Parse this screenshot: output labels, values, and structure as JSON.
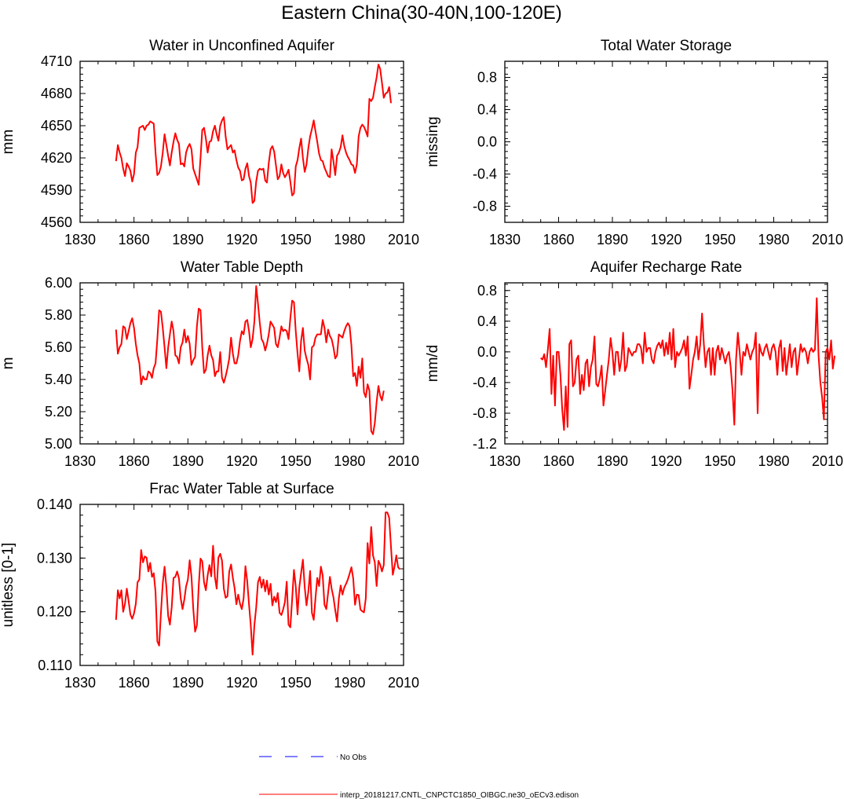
{
  "figure": {
    "title": "Eastern China(30-40N,100-120E)"
  },
  "chart_data": [
    {
      "type": "line",
      "title": "Water in Unconfined Aquifer",
      "ylabel": "mm",
      "xlim": [
        1830,
        2010
      ],
      "ylim": [
        4560,
        4710
      ],
      "xticks": [
        "1830",
        "1860",
        "1890",
        "1920",
        "1950",
        "1980",
        "2010"
      ],
      "yticks": [
        "4560",
        "4590",
        "4620",
        "4650",
        "4680",
        "4710"
      ],
      "start_year": 1850,
      "series": [
        {
          "name": "interp_20181217.CNTL_CNPCTC1850_OIBGC.ne30_oECv3.edison",
          "color": "#ff0000",
          "values": [
            4617,
            4632,
            4625,
            4620,
            4610,
            4603,
            4615,
            4612,
            4608,
            4598,
            4605,
            4625,
            4630,
            4648,
            4649,
            4650,
            4646,
            4650,
            4651,
            4654,
            4653,
            4652,
            4625,
            4604,
            4606,
            4612,
            4625,
            4642,
            4632,
            4622,
            4613,
            4625,
            4635,
            4643,
            4637,
            4633,
            4614,
            4615,
            4612,
            4625,
            4630,
            4633,
            4628,
            4610,
            4605,
            4600,
            4595,
            4620,
            4646,
            4648,
            4638,
            4625,
            4635,
            4636,
            4645,
            4650,
            4642,
            4636,
            4650,
            4655,
            4658,
            4640,
            4628,
            4630,
            4632,
            4625,
            4627,
            4618,
            4611,
            4608,
            4599,
            4600,
            4610,
            4615,
            4603,
            4597,
            4578,
            4580,
            4598,
            4608,
            4610,
            4609,
            4610,
            4599,
            4597,
            4615,
            4628,
            4631,
            4626,
            4613,
            4600,
            4603,
            4614,
            4606,
            4602,
            4605,
            4609,
            4598,
            4585,
            4587,
            4612,
            4618,
            4629,
            4638,
            4620,
            4607,
            4614,
            4629,
            4640,
            4647,
            4655,
            4645,
            4635,
            4624,
            4618,
            4617,
            4611,
            4607,
            4603,
            4602,
            4628,
            4617,
            4604,
            4622,
            4625,
            4630,
            4641,
            4631,
            4625,
            4621,
            4618,
            4614,
            4613,
            4606,
            4614,
            4640,
            4648,
            4651,
            4649,
            4645,
            4640,
            4675,
            4673,
            4676,
            4686,
            4695,
            4707,
            4703,
            4690,
            4676,
            4680,
            4681,
            4686,
            4671
          ]
        }
      ]
    },
    {
      "type": "line",
      "title": "Total Water Storage",
      "ylabel": "missing",
      "xlim": [
        1830,
        2010
      ],
      "ylim": [
        -1,
        1
      ],
      "xticks": [
        "1830",
        "1860",
        "1890",
        "1920",
        "1950",
        "1980",
        "2010"
      ],
      "yticks": [
        "-0.8",
        "-0.4",
        "0.0",
        "0.4",
        "0.8"
      ],
      "series": []
    },
    {
      "type": "line",
      "title": "Water Table Depth",
      "ylabel": "m",
      "xlim": [
        1830,
        2010
      ],
      "ylim": [
        5.0,
        6.0
      ],
      "xticks": [
        "1830",
        "1860",
        "1890",
        "1920",
        "1950",
        "1980",
        "2010"
      ],
      "yticks": [
        "5.00",
        "5.20",
        "5.40",
        "5.60",
        "5.80",
        "6.00"
      ],
      "start_year": 1850,
      "series": [
        {
          "name": "interp_20181217.CNTL_CNPCTC1850_OIBGC.ne30_oECv3.edison",
          "color": "#ff0000",
          "values": [
            5.71,
            5.56,
            5.6,
            5.62,
            5.73,
            5.72,
            5.65,
            5.7,
            5.75,
            5.78,
            5.72,
            5.62,
            5.55,
            5.5,
            5.37,
            5.42,
            5.4,
            5.4,
            5.45,
            5.44,
            5.41,
            5.47,
            5.5,
            5.65,
            5.83,
            5.82,
            5.72,
            5.6,
            5.47,
            5.6,
            5.68,
            5.76,
            5.7,
            5.55,
            5.54,
            5.5,
            5.6,
            5.63,
            5.71,
            5.63,
            5.67,
            5.62,
            5.49,
            5.52,
            5.54,
            5.73,
            5.84,
            5.83,
            5.6,
            5.44,
            5.46,
            5.55,
            5.61,
            5.55,
            5.52,
            5.42,
            5.45,
            5.45,
            5.57,
            5.41,
            5.38,
            5.42,
            5.47,
            5.53,
            5.66,
            5.56,
            5.5,
            5.5,
            5.55,
            5.64,
            5.7,
            5.68,
            5.76,
            5.77,
            5.7,
            5.6,
            5.65,
            5.76,
            5.98,
            5.87,
            5.75,
            5.65,
            5.63,
            5.58,
            5.62,
            5.68,
            5.76,
            5.74,
            5.72,
            5.62,
            5.6,
            5.66,
            5.73,
            5.7,
            5.71,
            5.7,
            5.65,
            5.78,
            5.89,
            5.88,
            5.7,
            5.56,
            5.45,
            5.64,
            5.72,
            5.58,
            5.53,
            5.49,
            5.4,
            5.6,
            5.61,
            5.66,
            5.68,
            5.68,
            5.68,
            5.77,
            5.72,
            5.63,
            5.71,
            5.67,
            5.65,
            5.6,
            5.53,
            5.55,
            5.68,
            5.67,
            5.66,
            5.7,
            5.73,
            5.75,
            5.73,
            5.61,
            5.42,
            5.44,
            5.36,
            5.48,
            5.41,
            5.53,
            5.32,
            5.29,
            5.37,
            5.33,
            5.08,
            5.06,
            5.13,
            5.26,
            5.36,
            5.3,
            5.27,
            5.33
          ]
        }
      ]
    },
    {
      "type": "line",
      "title": "Aquifer Recharge Rate",
      "ylabel": "mm/d",
      "xlim": [
        1830,
        2010
      ],
      "ylim": [
        -1.2,
        0.9
      ],
      "xticks": [
        "1830",
        "1860",
        "1890",
        "1920",
        "1950",
        "1980",
        "2010"
      ],
      "yticks": [
        "-1.2",
        "-0.8",
        "-0.4",
        "0.0",
        "0.4",
        "0.8"
      ],
      "start_year": 1850,
      "series": [
        {
          "name": "interp_20181217.CNTL_CNPCTC1850_OIBGC.ne30_oECv3.edison",
          "color": "#ff0000",
          "values": [
            -0.08,
            -0.1,
            -0.03,
            -0.2,
            0.03,
            0.3,
            -0.55,
            -0.05,
            -0.7,
            0.0,
            0.0,
            -0.3,
            -0.75,
            -1.02,
            -0.45,
            -0.98,
            0.1,
            0.15,
            -0.45,
            -0.4,
            -0.1,
            -0.05,
            -0.55,
            -0.3,
            -0.5,
            -0.15,
            -0.1,
            -0.45,
            -0.2,
            -0.1,
            0.2,
            -0.42,
            -0.45,
            -0.35,
            -0.18,
            -0.7,
            -0.5,
            -0.3,
            -0.1,
            0.18,
            0.0,
            -0.3,
            0.0,
            0.0,
            -0.25,
            -0.1,
            0.25,
            -0.25,
            -0.18,
            0.05,
            0.0,
            -0.05,
            0.0,
            0.0,
            0.1,
            0.1,
            0.05,
            -0.15,
            0.25,
            0.0,
            0.05,
            0.05,
            -0.1,
            -0.15,
            0.0,
            0.08,
            0.12,
            0.05,
            0.15,
            -0.05,
            0.12,
            -0.03,
            0.25,
            -0.1,
            0.3,
            -0.2,
            0.0,
            -0.05,
            0.0,
            0.05,
            0.15,
            -0.05,
            0.2,
            -0.48,
            -0.3,
            -0.1,
            0.0,
            0.2,
            -0.1,
            0.1,
            0.5,
            0.1,
            -0.2,
            0.0,
            0.05,
            -0.3,
            0.05,
            -0.3,
            0.0,
            0.08,
            -0.1,
            0.05,
            -0.05,
            -0.15,
            -0.05,
            0.0,
            -0.2,
            -0.5,
            -0.95,
            -0.1,
            0.25,
            0.0,
            -0.3,
            0.0,
            -0.05,
            0.1,
            0.0,
            -0.1,
            0.0,
            0.05,
            0.25,
            -0.8,
            0.1,
            0.0,
            -0.05,
            0.05,
            0.1,
            0.0,
            -0.1,
            0.05,
            0.1,
            0.0,
            -0.3,
            0.05,
            0.15,
            -0.25,
            0.05,
            -0.3,
            -0.1,
            0.1,
            -0.2,
            0.0,
            0.05,
            -0.3,
            -0.1,
            0.1,
            0.0,
            0.05,
            0.0,
            -0.15,
            0.0,
            0.05,
            0.0,
            0.03,
            0.7,
            -0.05,
            -0.4,
            -0.6,
            -0.88,
            0.0,
            0.05,
            -0.1,
            0.15,
            -0.22,
            -0.05
          ]
        }
      ]
    },
    {
      "type": "line",
      "title": "Frac Water Table at Surface",
      "ylabel": "unitless [0-1]",
      "xlim": [
        1830,
        2010
      ],
      "ylim": [
        0.11,
        0.14
      ],
      "xticks": [
        "1830",
        "1860",
        "1890",
        "1920",
        "1950",
        "1980",
        "2010"
      ],
      "yticks": [
        "0.110",
        "0.120",
        "0.130",
        "0.140"
      ],
      "start_year": 1850,
      "series": [
        {
          "name": "interp_20181217.CNTL_CNPCTC1850_OIBGC.ne30_oECv3.edison",
          "color": "#ff0000",
          "values": [
            0.1185,
            0.124,
            0.1225,
            0.124,
            0.12,
            0.1215,
            0.1243,
            0.122,
            0.1195,
            0.1187,
            0.1197,
            0.1215,
            0.1255,
            0.126,
            0.1315,
            0.1292,
            0.1303,
            0.1301,
            0.1275,
            0.1291,
            0.1265,
            0.1272,
            0.1237,
            0.1145,
            0.1137,
            0.1198,
            0.1253,
            0.1284,
            0.1246,
            0.1192,
            0.1176,
            0.1208,
            0.1263,
            0.1265,
            0.1275,
            0.1262,
            0.1225,
            0.1205,
            0.1223,
            0.1247,
            0.126,
            0.1296,
            0.1265,
            0.1205,
            0.1163,
            0.1175,
            0.1248,
            0.1299,
            0.1294,
            0.1255,
            0.124,
            0.1268,
            0.1287,
            0.1266,
            0.1323,
            0.1265,
            0.1243,
            0.1301,
            0.1308,
            0.1295,
            0.1243,
            0.1226,
            0.1229,
            0.1275,
            0.1288,
            0.1263,
            0.1244,
            0.1214,
            0.1232,
            0.1215,
            0.1205,
            0.1225,
            0.1285,
            0.1257,
            0.1213,
            0.1175,
            0.112,
            0.1175,
            0.1208,
            0.1255,
            0.1265,
            0.1245,
            0.126,
            0.1238,
            0.1258,
            0.1232,
            0.1252,
            0.1212,
            0.1228,
            0.1218,
            0.1235,
            0.1198,
            0.1194,
            0.1204,
            0.1218,
            0.1256,
            0.1176,
            0.1171,
            0.1223,
            0.1278,
            0.1247,
            0.1195,
            0.1245,
            0.1272,
            0.1297,
            0.1246,
            0.1212,
            0.1237,
            0.1276,
            0.1198,
            0.1185,
            0.1225,
            0.1263,
            0.1248,
            0.1284,
            0.1268,
            0.1213,
            0.1205,
            0.1235,
            0.1265,
            0.1243,
            0.1227,
            0.1203,
            0.1182,
            0.1225,
            0.1249,
            0.1232,
            0.1245,
            0.1252,
            0.126,
            0.1271,
            0.1283,
            0.1262,
            0.1213,
            0.1232,
            0.1231,
            0.1204,
            0.1201,
            0.1199,
            0.1225,
            0.1328,
            0.129,
            0.1358,
            0.1305,
            0.1292,
            0.1248,
            0.1295,
            0.1288,
            0.1275,
            0.1287,
            0.1385,
            0.1385,
            0.1375,
            0.1321,
            0.1269,
            0.1285,
            0.1305,
            0.1283,
            0.1279
          ]
        }
      ]
    }
  ],
  "legend": [
    {
      "label": "No Obs",
      "color": "#0000ff",
      "style": "dashed"
    },
    {
      "label": "interp_20181217.CNTL_CNPCTC1850_OIBGC.ne30_oECv3.edison",
      "color": "#ff0000",
      "style": "solid"
    }
  ]
}
